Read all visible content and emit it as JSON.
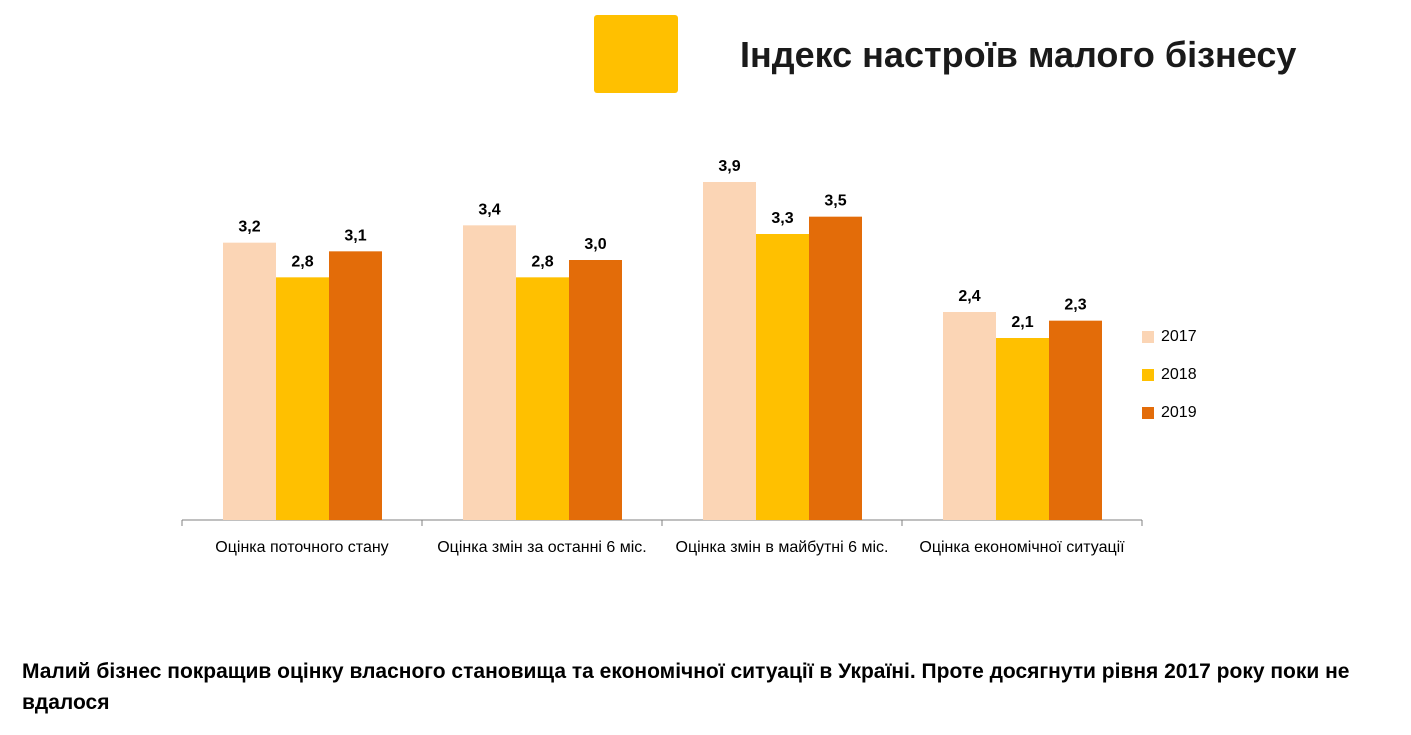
{
  "page": {
    "title": "Індекс настроїв малого бізнесу",
    "accent_color": "#FFC000",
    "footer": "Малий бізнес покращив оцінку власного становища та економічної ситуації в Україні. Проте досягнути рівня 2017 року поки не вдалося"
  },
  "chart_data": {
    "type": "bar",
    "title": "",
    "xlabel": "",
    "ylabel": "",
    "ylim": [
      0,
      4.6
    ],
    "grid": false,
    "legend_position": "right",
    "categories": [
      "Оцінка поточного стану",
      "Оцінка змін за останні 6 міс.",
      "Оцінка змін в майбутні 6 міс.",
      "Оцінка економічної ситуації"
    ],
    "series": [
      {
        "name": "2017",
        "color": "#FBD5B5",
        "values": [
          3.2,
          3.4,
          3.9,
          2.4
        ],
        "labels": [
          "3,2",
          "3,4",
          "3,9",
          "2,4"
        ]
      },
      {
        "name": "2018",
        "color": "#FFC000",
        "values": [
          2.8,
          2.8,
          3.3,
          2.1
        ],
        "labels": [
          "2,8",
          "2,8",
          "3,3",
          "2,1"
        ]
      },
      {
        "name": "2019",
        "color": "#E36C09",
        "values": [
          3.1,
          3.0,
          3.5,
          2.3
        ],
        "labels": [
          "3,1",
          "3,0",
          "3,5",
          "2,3"
        ]
      }
    ]
  }
}
